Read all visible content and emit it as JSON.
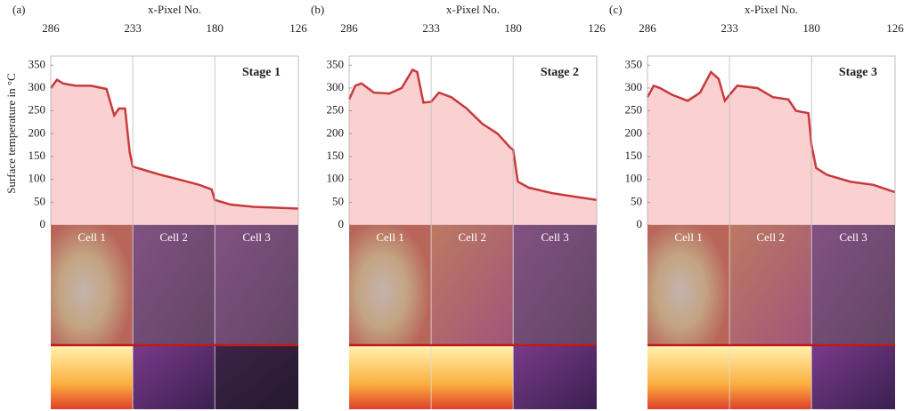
{
  "chart_data": [
    {
      "type": "area",
      "panel": "(a)",
      "x_label": "x-Pixel No.",
      "y_label": "Surface temperature in °C",
      "annotation": "Stage 1",
      "cells": [
        "Cell 1",
        "Cell 2",
        "Cell 3"
      ],
      "x": [
        286,
        282,
        278,
        270,
        260,
        250,
        245,
        242,
        238,
        235,
        233,
        225,
        215,
        200,
        190,
        182,
        180,
        170,
        155,
        140,
        126
      ],
      "values": [
        300,
        318,
        310,
        305,
        305,
        298,
        240,
        255,
        255,
        160,
        128,
        120,
        110,
        97,
        88,
        78,
        55,
        45,
        40,
        38,
        36
      ],
      "color": "#c8393c",
      "fill": "#fbd0d0",
      "xlim": [
        286,
        126
      ],
      "xticks": [
        286,
        233,
        180,
        126
      ],
      "ylim": [
        0,
        370
      ],
      "yticks": [
        0,
        50,
        100,
        150,
        200,
        250,
        300,
        350
      ],
      "grid": "x"
    },
    {
      "type": "area",
      "panel": "(b)",
      "x_label": "x-Pixel No.",
      "annotation": "Stage 2",
      "cells": [
        "Cell 1",
        "Cell 2",
        "Cell 3"
      ],
      "x": [
        286,
        282,
        278,
        270,
        260,
        252,
        245,
        242,
        238,
        233,
        228,
        220,
        210,
        200,
        190,
        182,
        180,
        177,
        170,
        155,
        140,
        126
      ],
      "values": [
        275,
        305,
        310,
        290,
        288,
        300,
        340,
        335,
        268,
        270,
        290,
        280,
        255,
        222,
        200,
        170,
        165,
        95,
        82,
        70,
        62,
        55
      ],
      "color": "#c8393c",
      "fill": "#fbd0d0",
      "xlim": [
        286,
        126
      ],
      "xticks": [
        286,
        233,
        180,
        126
      ],
      "ylim": [
        0,
        370
      ],
      "yticks": [
        0,
        50,
        100,
        150,
        200,
        250,
        300,
        350
      ],
      "grid": "x"
    },
    {
      "type": "area",
      "panel": "(c)",
      "x_label": "x-Pixel No.",
      "annotation": "Stage 3",
      "cells": [
        "Cell 1",
        "Cell 2",
        "Cell 3"
      ],
      "x": [
        286,
        282,
        278,
        270,
        260,
        252,
        245,
        240,
        236,
        233,
        228,
        215,
        205,
        195,
        190,
        182,
        180,
        177,
        170,
        155,
        140,
        126
      ],
      "values": [
        280,
        305,
        300,
        285,
        272,
        290,
        335,
        320,
        272,
        285,
        305,
        300,
        280,
        275,
        250,
        245,
        175,
        125,
        110,
        95,
        88,
        72
      ],
      "color": "#c8393c",
      "fill": "#fbd0d0",
      "xlim": [
        286,
        126
      ],
      "xticks": [
        286,
        233,
        180,
        126
      ],
      "ylim": [
        0,
        370
      ],
      "yticks": [
        0,
        50,
        100,
        150,
        200,
        250,
        300,
        350
      ],
      "grid": "x"
    }
  ]
}
